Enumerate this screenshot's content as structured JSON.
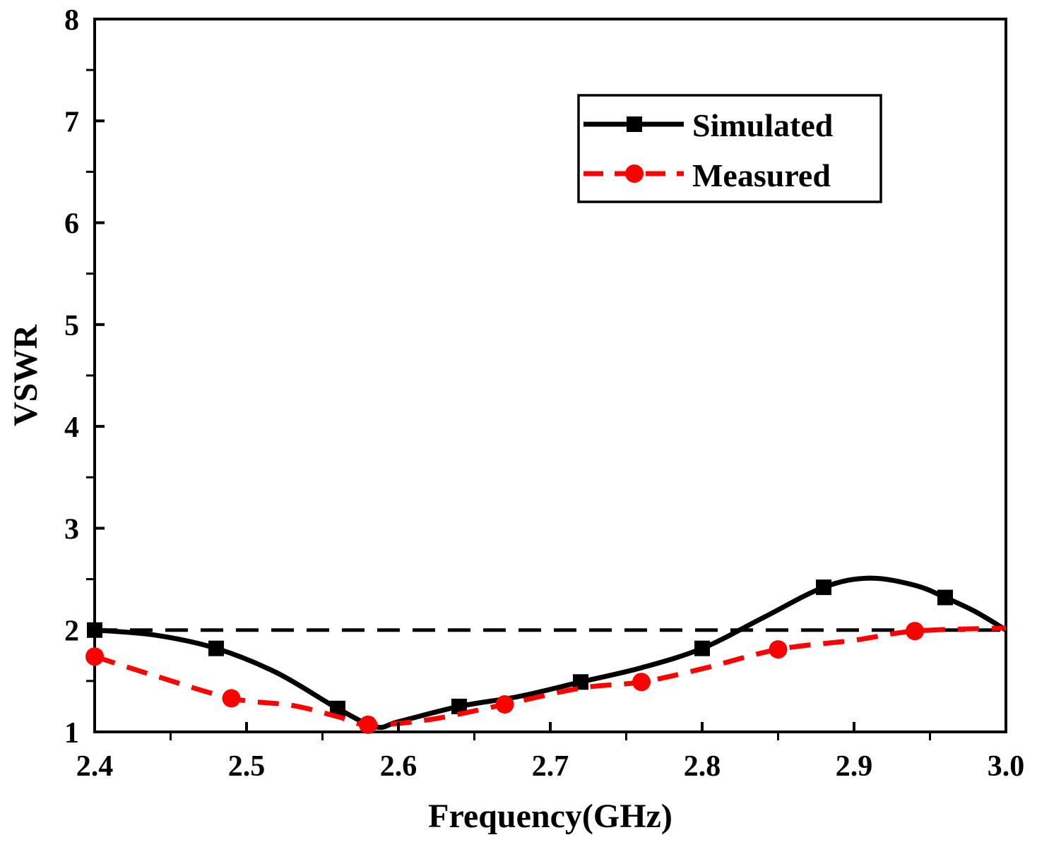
{
  "chart_data": {
    "type": "line",
    "xlabel": "Frequency(GHz)",
    "ylabel": "VSWR",
    "xlim": [
      2.4,
      3.0
    ],
    "ylim": [
      1,
      8
    ],
    "x_ticks": [
      "2.4",
      "2.5",
      "2.6",
      "2.7",
      "2.8",
      "2.9",
      "3.0"
    ],
    "x_tick_values": [
      2.4,
      2.5,
      2.6,
      2.7,
      2.8,
      2.9,
      3.0
    ],
    "y_ticks": [
      "1",
      "2",
      "3",
      "4",
      "5",
      "6",
      "7",
      "8"
    ],
    "y_tick_values": [
      1,
      2,
      3,
      4,
      5,
      6,
      7,
      8
    ],
    "reference_line": {
      "y": 2,
      "color": "#000000",
      "style": "dashed"
    },
    "legend_position": "top-right",
    "grid": false,
    "series": [
      {
        "name": "Simulated",
        "color": "#000000",
        "marker": "square",
        "style": "solid",
        "markers": [
          [
            2.4,
            2.0
          ],
          [
            2.48,
            1.82
          ],
          [
            2.56,
            1.23
          ],
          [
            2.64,
            1.25
          ],
          [
            2.72,
            1.49
          ],
          [
            2.8,
            1.82
          ],
          [
            2.88,
            2.42
          ],
          [
            2.96,
            2.32
          ]
        ],
        "curve": [
          [
            2.4,
            2.0
          ],
          [
            2.44,
            1.95
          ],
          [
            2.48,
            1.82
          ],
          [
            2.52,
            1.58
          ],
          [
            2.56,
            1.23
          ],
          [
            2.585,
            1.05
          ],
          [
            2.6,
            1.1
          ],
          [
            2.64,
            1.25
          ],
          [
            2.68,
            1.35
          ],
          [
            2.72,
            1.49
          ],
          [
            2.76,
            1.63
          ],
          [
            2.8,
            1.82
          ],
          [
            2.84,
            2.12
          ],
          [
            2.88,
            2.42
          ],
          [
            2.91,
            2.51
          ],
          [
            2.94,
            2.44
          ],
          [
            2.96,
            2.32
          ],
          [
            2.98,
            2.18
          ],
          [
            3.0,
            2.0
          ]
        ]
      },
      {
        "name": "Measured",
        "color": "#ff0000",
        "marker": "circle",
        "style": "dashed",
        "markers": [
          [
            2.4,
            1.74
          ],
          [
            2.49,
            1.33
          ],
          [
            2.58,
            1.07
          ],
          [
            2.67,
            1.27
          ],
          [
            2.76,
            1.49
          ],
          [
            2.85,
            1.81
          ],
          [
            2.94,
            1.99
          ]
        ],
        "curve": [
          [
            2.4,
            1.74
          ],
          [
            2.44,
            1.55
          ],
          [
            2.49,
            1.33
          ],
          [
            2.53,
            1.26
          ],
          [
            2.56,
            1.15
          ],
          [
            2.58,
            1.07
          ],
          [
            2.62,
            1.12
          ],
          [
            2.67,
            1.27
          ],
          [
            2.72,
            1.43
          ],
          [
            2.76,
            1.49
          ],
          [
            2.8,
            1.62
          ],
          [
            2.85,
            1.81
          ],
          [
            2.9,
            1.9
          ],
          [
            2.94,
            1.99
          ],
          [
            3.0,
            2.02
          ]
        ]
      }
    ]
  }
}
